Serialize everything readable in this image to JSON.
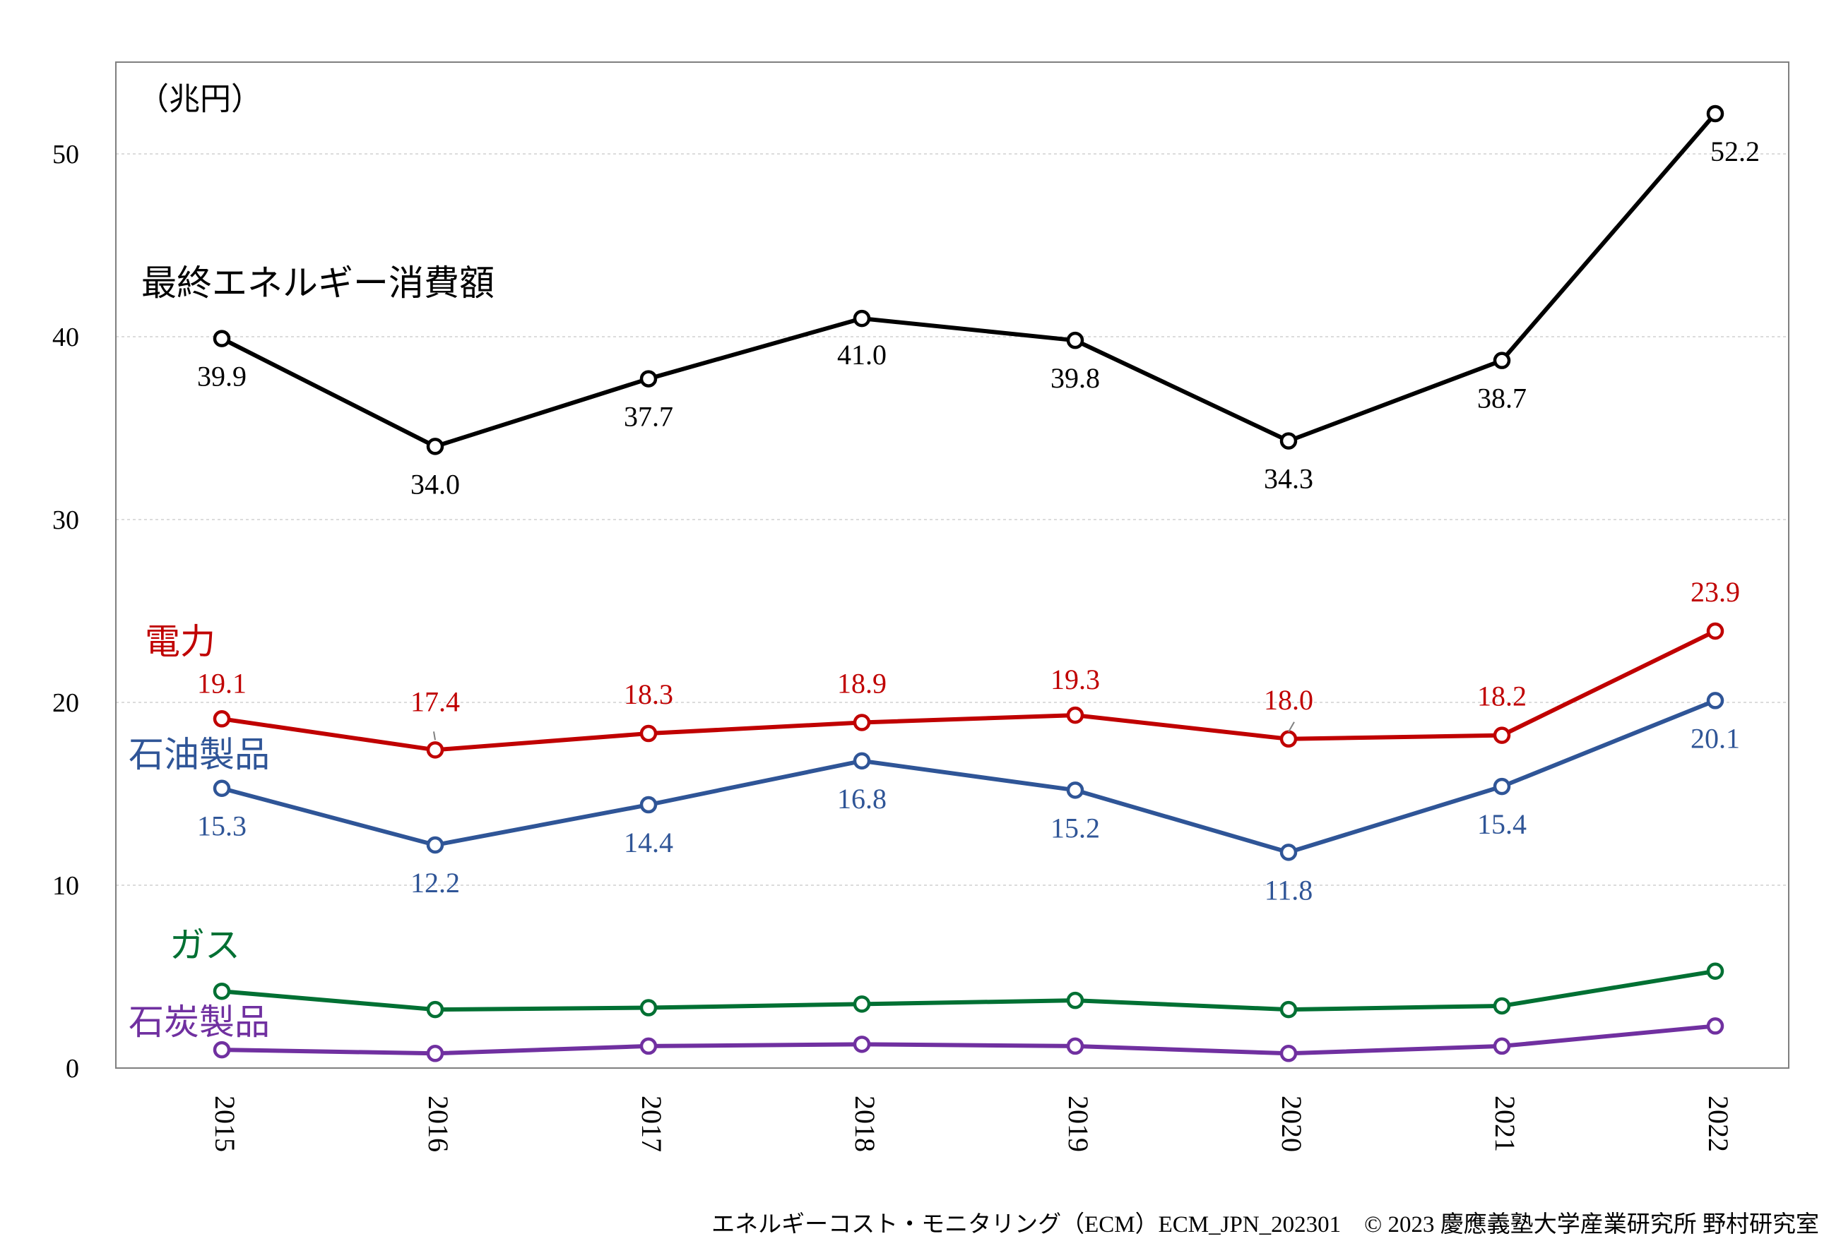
{
  "chart_data": {
    "type": "line",
    "unit_label": "（兆円）",
    "categories": [
      "2015",
      "2016",
      "2017",
      "2018",
      "2019",
      "2020",
      "2021",
      "2022"
    ],
    "ylim": [
      0,
      55
    ],
    "yticks": [
      0,
      10,
      20,
      30,
      40,
      50
    ],
    "grid": true,
    "series": [
      {
        "name": "最終エネルギー消費額",
        "color": "#000000",
        "values": [
          39.9,
          34.0,
          37.7,
          41.0,
          39.8,
          34.3,
          38.7,
          52.2
        ],
        "labels": [
          "39.9",
          "34.0",
          "37.7",
          "41.0",
          "39.8",
          "34.3",
          "38.7",
          "52.2"
        ]
      },
      {
        "name": "電力",
        "color": "#c00000",
        "values": [
          19.1,
          17.4,
          18.3,
          18.9,
          19.3,
          18.0,
          18.2,
          23.9
        ],
        "labels": [
          "19.1",
          "17.4",
          "18.3",
          "18.9",
          "19.3",
          "18.0",
          "18.2",
          "23.9"
        ]
      },
      {
        "name": "石油製品",
        "color": "#2f5597",
        "values": [
          15.3,
          12.2,
          14.4,
          16.8,
          15.2,
          11.8,
          15.4,
          20.1
        ],
        "labels": [
          "15.3",
          "12.2",
          "14.4",
          "16.8",
          "15.2",
          "11.8",
          "15.4",
          "20.1"
        ]
      },
      {
        "name": "ガス",
        "color": "#007033",
        "values": [
          4.2,
          3.2,
          3.3,
          3.5,
          3.7,
          3.2,
          3.4,
          5.3
        ]
      },
      {
        "name": "石炭製品",
        "color": "#7030a0",
        "values": [
          1.0,
          0.8,
          1.2,
          1.3,
          1.2,
          0.8,
          1.2,
          2.3
        ]
      }
    ]
  },
  "footer": "エネルギーコスト・モニタリング（ECM）ECM_JPN_202301　© 2023 慶應義塾大学産業研究所 野村研究室"
}
